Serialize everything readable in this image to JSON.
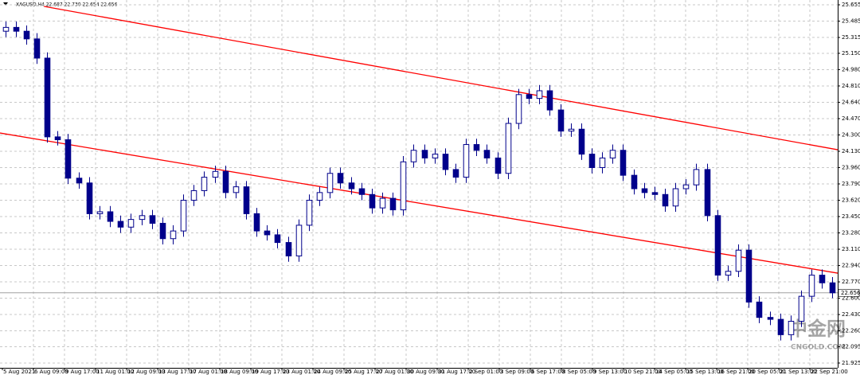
{
  "chart_data": {
    "type": "candlestick",
    "title": "XAGUSD,H4  22.687 22.730 22.654 22.656",
    "open": [
      25.38,
      25.42,
      25.38,
      25.3,
      25.1,
      24.28,
      24.25,
      23.85,
      23.8,
      23.48,
      23.5,
      23.4,
      23.34,
      23.42,
      23.46,
      23.38,
      23.22,
      23.3,
      23.62,
      23.72,
      23.86,
      23.92,
      23.7,
      23.76,
      23.48,
      23.3,
      23.26,
      23.18,
      23.04,
      23.36,
      23.62,
      23.7,
      23.9,
      23.8,
      23.74,
      23.68,
      23.54,
      23.64,
      23.52,
      24.02,
      24.14,
      24.06,
      24.1,
      23.94,
      23.86,
      24.2,
      24.14,
      24.06,
      23.9,
      24.42,
      24.72,
      24.68,
      24.76,
      24.56,
      24.34,
      24.36,
      24.1,
      23.96,
      24.06,
      24.14,
      23.88,
      23.74,
      23.7,
      23.68,
      23.56,
      23.74,
      23.78,
      23.94,
      23.46,
      22.84,
      22.88,
      23.1,
      22.56,
      22.4,
      22.38,
      22.22,
      22.36,
      22.62,
      22.84,
      22.76
    ],
    "high": [
      25.48,
      25.48,
      25.44,
      25.36,
      25.16,
      24.34,
      24.31,
      23.91,
      23.86,
      23.56,
      23.56,
      23.46,
      23.48,
      23.52,
      23.52,
      23.44,
      23.36,
      23.68,
      23.78,
      23.92,
      23.98,
      23.98,
      23.82,
      23.82,
      23.54,
      23.36,
      23.32,
      23.24,
      23.42,
      23.68,
      23.76,
      23.96,
      23.96,
      23.86,
      23.8,
      23.74,
      23.7,
      23.7,
      24.08,
      24.2,
      24.2,
      24.16,
      24.16,
      24.0,
      24.26,
      24.26,
      24.2,
      24.12,
      24.48,
      24.78,
      24.78,
      24.82,
      24.82,
      24.62,
      24.42,
      24.42,
      24.16,
      24.12,
      24.2,
      24.2,
      23.94,
      23.8,
      23.76,
      23.74,
      23.8,
      23.84,
      24.0,
      24.0,
      23.52,
      22.94,
      23.16,
      23.16,
      22.62,
      22.46,
      22.44,
      22.42,
      22.68,
      22.9,
      22.9,
      22.82
    ],
    "low": [
      25.32,
      25.32,
      25.24,
      25.04,
      24.22,
      24.19,
      23.79,
      23.74,
      23.42,
      23.42,
      23.34,
      23.28,
      23.28,
      23.36,
      23.32,
      23.16,
      23.16,
      23.24,
      23.56,
      23.66,
      23.8,
      23.64,
      23.64,
      23.42,
      23.24,
      23.2,
      23.12,
      22.98,
      22.98,
      23.3,
      23.56,
      23.64,
      23.74,
      23.68,
      23.62,
      23.48,
      23.48,
      23.46,
      23.46,
      23.96,
      24.0,
      24.0,
      23.88,
      23.8,
      23.8,
      24.08,
      24.0,
      23.84,
      23.84,
      24.36,
      24.62,
      24.62,
      24.5,
      24.28,
      24.28,
      24.04,
      23.9,
      23.9,
      24.0,
      23.82,
      23.68,
      23.64,
      23.62,
      23.5,
      23.5,
      23.68,
      23.72,
      23.4,
      22.78,
      22.78,
      22.82,
      22.5,
      22.34,
      22.32,
      22.16,
      22.16,
      22.3,
      22.56,
      22.7,
      22.6
    ],
    "close": [
      25.42,
      25.38,
      25.3,
      25.1,
      24.28,
      24.25,
      23.85,
      23.8,
      23.48,
      23.5,
      23.4,
      23.34,
      23.42,
      23.46,
      23.38,
      23.22,
      23.3,
      23.62,
      23.72,
      23.86,
      23.92,
      23.7,
      23.76,
      23.48,
      23.3,
      23.26,
      23.18,
      23.04,
      23.36,
      23.62,
      23.7,
      23.9,
      23.8,
      23.74,
      23.68,
      23.54,
      23.64,
      23.52,
      24.02,
      24.14,
      24.06,
      24.1,
      23.94,
      23.86,
      24.2,
      24.14,
      24.06,
      23.9,
      24.42,
      24.72,
      24.68,
      24.76,
      24.56,
      24.34,
      24.36,
      24.1,
      23.96,
      24.06,
      24.14,
      23.88,
      23.74,
      23.7,
      23.68,
      23.56,
      23.74,
      23.78,
      23.94,
      23.46,
      22.84,
      22.88,
      23.1,
      22.56,
      22.4,
      22.38,
      22.22,
      22.36,
      22.62,
      22.84,
      22.76,
      22.656
    ],
    "color": "#00008b",
    "xlim": [
      0,
      80
    ],
    "x_labels": [
      "5 Aug 2021",
      "6 Aug 09:00",
      "9 Aug 17:00",
      "11 Aug 01:00",
      "12 Aug 09:00",
      "13 Aug 17:00",
      "17 Aug 01:00",
      "18 Aug 09:00",
      "19 Aug 17:00",
      "23 Aug 01:00",
      "24 Aug 09:00",
      "25 Aug 17:00",
      "27 Aug 01:00",
      "30 Aug 09:00",
      "31 Aug 17:00",
      "2 Sep 01:00",
      "3 Sep 09:00",
      "6 Sep 17:00",
      "8 Sep 05:00",
      "9 Sep 13:00",
      "10 Sep 21:00",
      "14 Sep 05:00",
      "15 Sep 13:00",
      "16 Sep 21:00",
      "20 Sep 05:00",
      "21 Sep 13:00",
      "22 Sep 21:00"
    ],
    "ylim": [
      21.875,
      25.705
    ],
    "yticks": [
      25.655,
      25.485,
      25.315,
      {
        "value": 25.15,
        "label": "25.150"
      },
      {
        "value": 24.98,
        "label": "24.980"
      },
      {
        "value": 24.81,
        "label": "24.810"
      },
      {
        "value": 24.64,
        "label": "24.640"
      },
      {
        "value": 24.47,
        "label": "24.470"
      },
      {
        "value": 24.3,
        "label": "24.300"
      },
      {
        "value": 24.13,
        "label": "24.130"
      },
      {
        "value": 23.96,
        "label": "23.960"
      },
      {
        "value": 23.79,
        "label": "23.790"
      },
      {
        "value": 23.62,
        "label": "23.620"
      },
      {
        "value": 23.45,
        "label": "23.450"
      },
      {
        "value": 23.28,
        "label": "23.280"
      },
      {
        "value": 23.11,
        "label": "23.110"
      },
      {
        "value": 22.94,
        "label": "22.940"
      },
      {
        "value": 22.77,
        "label": "22.770"
      },
      {
        "value": 22.6,
        "label": "22.600"
      },
      {
        "value": 22.43,
        "label": "22.430"
      },
      {
        "value": 22.26,
        "label": "22.260"
      },
      22.095,
      21.925
    ],
    "grid": true,
    "current_price": 22.656,
    "trendlines": [
      {
        "color": "#ff0000",
        "x": [
          4.2,
          80
        ],
        "y": [
          25.639,
          24.146
        ]
      },
      {
        "color": "#ff0000",
        "x": [
          0,
          80
        ],
        "y": [
          24.32,
          22.861
        ]
      }
    ],
    "watermark": [
      "中金网",
      "CNGOLD.COM"
    ]
  }
}
